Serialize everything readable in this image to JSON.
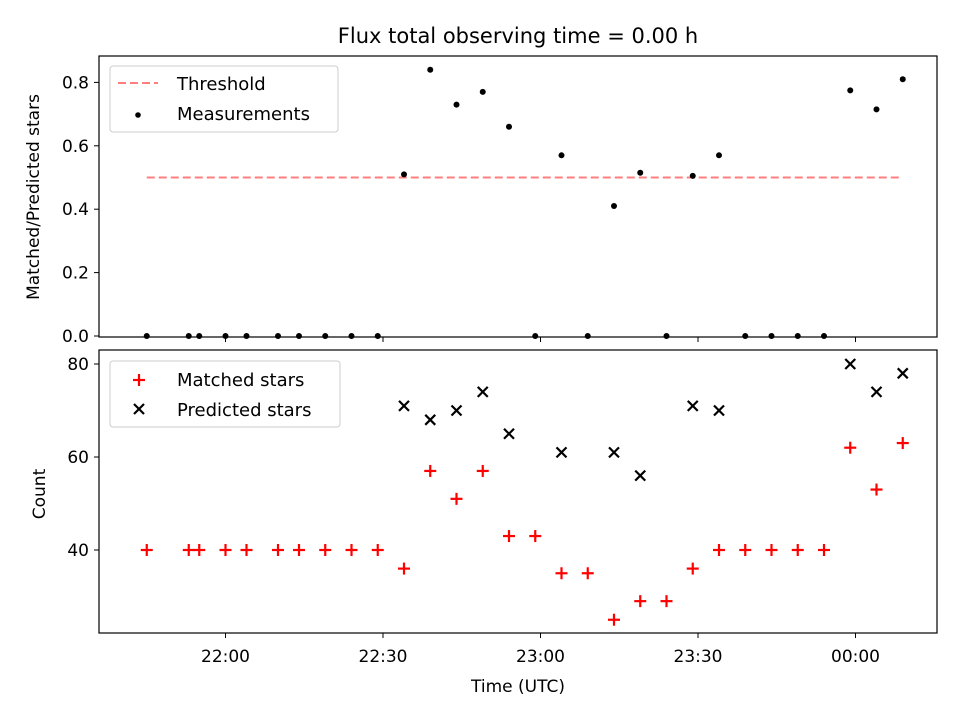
{
  "title": "Flux total observing time = 0.00 h",
  "xlabel": "Time (UTC)",
  "x_ticks": [
    "22:00",
    "22:30",
    "23:00",
    "23:30",
    "00:00"
  ],
  "chart_data": [
    {
      "type": "scatter",
      "ylabel": "Matched/Predicted stars",
      "ylim": [
        0,
        0.88
      ],
      "y_ticks": [
        "0.0",
        "0.2",
        "0.4",
        "0.6",
        "0.8"
      ],
      "legend": {
        "placement": "upper-left",
        "threshold_label": "Threshold",
        "measurements_label": "Measurements"
      },
      "threshold": {
        "value": 0.5,
        "color": "#ff7f7f"
      },
      "measurements": {
        "color": "#000000",
        "x": [
          "21:45",
          "21:53",
          "21:55",
          "22:00",
          "22:04",
          "22:10",
          "22:14",
          "22:19",
          "22:24",
          "22:29",
          "22:34",
          "22:39",
          "22:44",
          "22:49",
          "22:54",
          "22:59",
          "23:04",
          "23:09",
          "23:14",
          "23:19",
          "23:24",
          "23:29",
          "23:34",
          "23:39",
          "23:44",
          "23:49",
          "23:54",
          "23:59",
          "00:04",
          "00:09"
        ],
        "y": [
          0,
          0,
          0,
          0,
          0,
          0,
          0,
          0,
          0,
          0,
          0.51,
          0.84,
          0.73,
          0.77,
          0.66,
          0,
          0.57,
          0,
          0.41,
          0.515,
          0,
          0.505,
          0.57,
          0,
          0,
          0,
          0,
          0.775,
          0.715,
          0.81
        ]
      }
    },
    {
      "type": "scatter",
      "ylabel": "Count",
      "ylim": [
        22,
        83
      ],
      "y_ticks": [
        "40",
        "60",
        "80"
      ],
      "legend": {
        "placement": "upper-left"
      },
      "series": [
        {
          "name": "Matched stars",
          "marker": "plus",
          "color": "#ff0000",
          "x": [
            "21:45",
            "21:53",
            "21:55",
            "22:00",
            "22:04",
            "22:10",
            "22:14",
            "22:19",
            "22:24",
            "22:29",
            "22:34",
            "22:39",
            "22:44",
            "22:49",
            "22:54",
            "22:59",
            "23:04",
            "23:09",
            "23:14",
            "23:19",
            "23:24",
            "23:29",
            "23:34",
            "23:39",
            "23:44",
            "23:49",
            "23:54",
            "23:59",
            "00:04",
            "00:09"
          ],
          "values": [
            40,
            40,
            40,
            40,
            40,
            40,
            40,
            40,
            40,
            40,
            36,
            57,
            51,
            57,
            43,
            43,
            35,
            35,
            25,
            29,
            29,
            36,
            40,
            40,
            40,
            40,
            40,
            62,
            53,
            63
          ]
        },
        {
          "name": "Predicted stars",
          "marker": "x",
          "color": "#000000",
          "x": [
            "22:34",
            "22:39",
            "22:44",
            "22:49",
            "22:54",
            "23:04",
            "23:14",
            "23:19",
            "23:29",
            "23:34",
            "23:59",
            "00:04",
            "00:09"
          ],
          "values": [
            71,
            68,
            70,
            74,
            65,
            61,
            61,
            56,
            71,
            70,
            80,
            74,
            78
          ]
        }
      ]
    }
  ]
}
